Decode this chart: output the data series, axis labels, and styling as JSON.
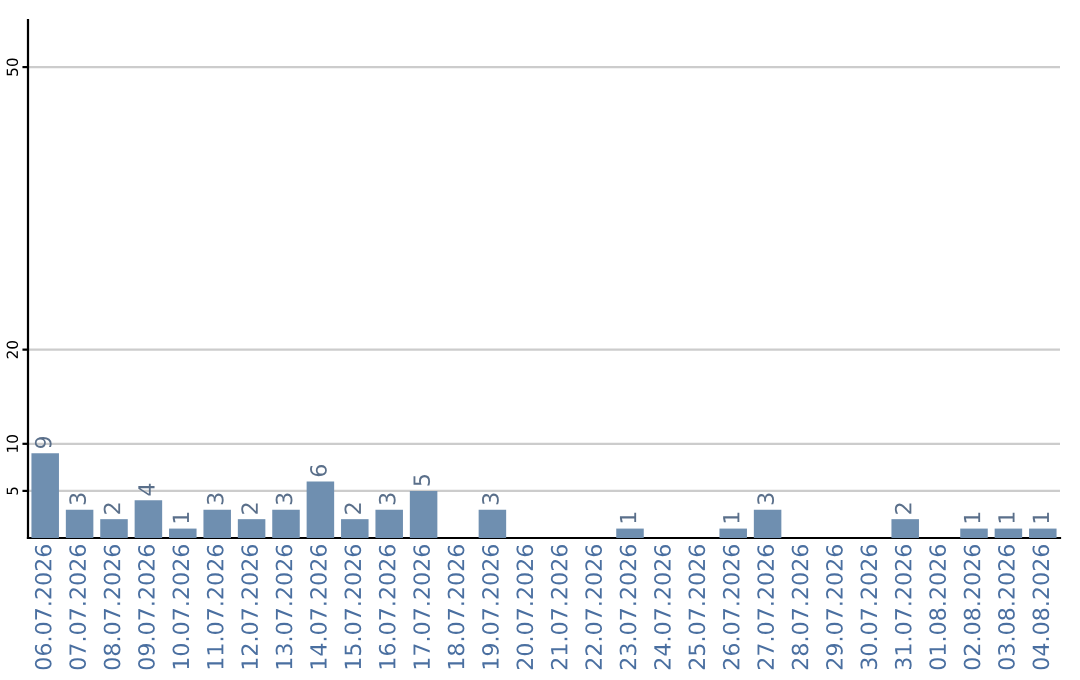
{
  "chart_data": {
    "type": "bar",
    "categories": [
      "06.07.2026",
      "07.07.2026",
      "08.07.2026",
      "09.07.2026",
      "10.07.2026",
      "11.07.2026",
      "12.07.2026",
      "13.07.2026",
      "14.07.2026",
      "15.07.2026",
      "16.07.2026",
      "17.07.2026",
      "18.07.2026",
      "19.07.2026",
      "20.07.2026",
      "21.07.2026",
      "22.07.2026",
      "23.07.2026",
      "24.07.2026",
      "25.07.2026",
      "26.07.2026",
      "27.07.2026",
      "28.07.2026",
      "29.07.2026",
      "30.07.2026",
      "31.07.2026",
      "01.08.2026",
      "02.08.2026",
      "03.08.2026",
      "04.08.2026"
    ],
    "values": [
      9,
      3,
      2,
      4,
      1,
      3,
      2,
      3,
      6,
      2,
      3,
      5,
      0,
      3,
      0,
      0,
      0,
      1,
      0,
      0,
      1,
      3,
      0,
      0,
      0,
      2,
      0,
      1,
      1,
      1
    ],
    "value_labels": [
      "9",
      "3",
      "2",
      "4",
      "1",
      "3",
      "2",
      "3",
      "6",
      "2",
      "3",
      "5",
      null,
      "3",
      null,
      null,
      null,
      "1",
      null,
      null,
      "1",
      "3",
      null,
      null,
      null,
      "2",
      null,
      "1",
      "1",
      "1"
    ],
    "color": "#6f8fb0",
    "ylim": [
      0,
      55
    ],
    "yticks": [
      5,
      10,
      20,
      50
    ],
    "grid": "y"
  }
}
